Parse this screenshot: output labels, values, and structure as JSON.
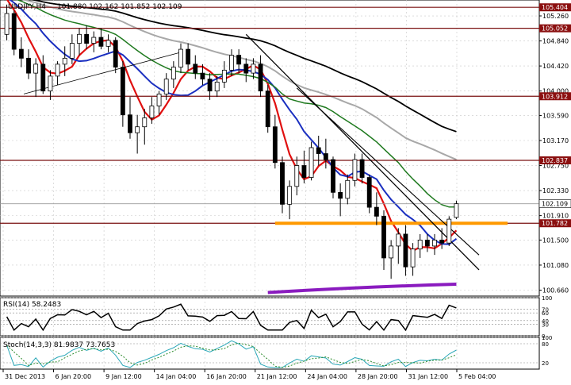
{
  "header": {
    "symbol": "USDJPY,H4",
    "ohlc": "101.880 102.162 101.852 102.109"
  },
  "chart_data": {
    "type": "candlestick",
    "symbol": "USDJPY",
    "timeframe": "H4",
    "y_range": [
      100.6,
      105.5
    ],
    "price_ticks": [
      105.26,
      104.84,
      104.42,
      104.0,
      103.59,
      103.17,
      102.75,
      102.33,
      101.91,
      101.5,
      101.08,
      100.66
    ],
    "time_labels": [
      "31 Dec 2013",
      "6 Jan 20:00",
      "9 Jan 12:00",
      "14 Jan 04:00",
      "16 Jan 20:00",
      "21 Jan 12:00",
      "24 Jan 04:00",
      "28 Jan 20:00",
      "31 Jan 12:00",
      "5 Feb 04:00"
    ],
    "horizontal_levels": [
      {
        "label": "105.404",
        "value": 105.404
      },
      {
        "label": "105.052",
        "value": 105.052
      },
      {
        "label": "103.912",
        "value": 103.912
      },
      {
        "label": "102.837",
        "value": 102.837
      },
      {
        "label": "101.782",
        "value": 101.782
      }
    ],
    "current_price": {
      "label": "102.109",
      "value": 102.109
    },
    "last_ohlc": {
      "open": 101.88,
      "high": 102.162,
      "low": 101.852,
      "close": 102.109
    },
    "candles": [
      [
        104.95,
        105.45,
        104.85,
        105.3
      ],
      [
        105.3,
        105.35,
        104.6,
        104.7
      ],
      [
        104.7,
        104.9,
        104.4,
        104.55
      ],
      [
        104.55,
        104.7,
        104.2,
        104.3
      ],
      [
        104.3,
        104.55,
        103.9,
        104.45
      ],
      [
        104.45,
        104.6,
        103.95,
        104.0
      ],
      [
        104.0,
        104.35,
        103.85,
        104.25
      ],
      [
        104.25,
        104.5,
        104.1,
        104.45
      ],
      [
        104.45,
        104.75,
        104.25,
        104.55
      ],
      [
        104.55,
        104.95,
        104.45,
        104.8
      ],
      [
        104.8,
        105.05,
        104.6,
        104.95
      ],
      [
        104.95,
        105.1,
        104.7,
        104.8
      ],
      [
        104.8,
        105.0,
        104.65,
        104.9
      ],
      [
        104.9,
        105.05,
        104.7,
        104.75
      ],
      [
        104.75,
        104.95,
        104.65,
        104.85
      ],
      [
        104.85,
        104.9,
        104.3,
        104.4
      ],
      [
        104.4,
        104.5,
        103.4,
        103.6
      ],
      [
        103.6,
        103.9,
        103.2,
        103.3
      ],
      [
        103.3,
        103.6,
        102.95,
        103.4
      ],
      [
        103.4,
        103.7,
        103.1,
        103.55
      ],
      [
        103.55,
        103.9,
        103.45,
        103.75
      ],
      [
        103.75,
        104.0,
        103.6,
        103.95
      ],
      [
        103.95,
        104.3,
        103.85,
        104.2
      ],
      [
        104.2,
        104.5,
        104.05,
        104.4
      ],
      [
        104.4,
        104.8,
        104.3,
        104.7
      ],
      [
        104.7,
        104.8,
        104.35,
        104.45
      ],
      [
        104.45,
        104.6,
        104.2,
        104.3
      ],
      [
        104.3,
        104.45,
        104.1,
        104.2
      ],
      [
        104.2,
        104.3,
        103.85,
        104.0
      ],
      [
        104.0,
        104.25,
        103.9,
        104.15
      ],
      [
        104.15,
        104.5,
        104.05,
        104.35
      ],
      [
        104.35,
        104.7,
        104.25,
        104.6
      ],
      [
        104.6,
        104.7,
        104.3,
        104.45
      ],
      [
        104.45,
        104.55,
        104.15,
        104.3
      ],
      [
        104.3,
        104.55,
        104.2,
        104.45
      ],
      [
        104.45,
        104.6,
        103.9,
        104.0
      ],
      [
        104.0,
        104.1,
        103.3,
        103.4
      ],
      [
        103.4,
        103.6,
        102.7,
        102.8
      ],
      [
        102.8,
        102.9,
        101.95,
        102.1
      ],
      [
        102.1,
        102.5,
        101.85,
        102.4
      ],
      [
        102.4,
        102.9,
        102.25,
        102.75
      ],
      [
        102.75,
        103.0,
        102.45,
        102.55
      ],
      [
        102.55,
        103.15,
        102.5,
        103.05
      ],
      [
        103.05,
        103.25,
        102.75,
        102.95
      ],
      [
        102.95,
        103.2,
        102.7,
        102.85
      ],
      [
        102.85,
        102.9,
        102.2,
        102.3
      ],
      [
        102.3,
        102.45,
        101.9,
        102.2
      ],
      [
        102.2,
        102.6,
        102.1,
        102.5
      ],
      [
        102.5,
        102.95,
        102.4,
        102.85
      ],
      [
        102.85,
        102.95,
        102.45,
        102.55
      ],
      [
        102.55,
        102.6,
        101.95,
        102.05
      ],
      [
        102.05,
        102.3,
        101.75,
        101.9
      ],
      [
        101.9,
        102.0,
        101.0,
        101.2
      ],
      [
        101.2,
        101.5,
        100.85,
        101.4
      ],
      [
        101.4,
        101.7,
        101.1,
        101.6
      ],
      [
        101.6,
        101.75,
        100.9,
        101.05
      ],
      [
        101.05,
        101.45,
        100.9,
        101.35
      ],
      [
        101.35,
        101.6,
        101.2,
        101.5
      ],
      [
        101.5,
        101.6,
        101.3,
        101.4
      ],
      [
        101.4,
        101.6,
        101.25,
        101.5
      ],
      [
        101.5,
        101.7,
        101.35,
        101.45
      ],
      [
        101.45,
        101.9,
        101.4,
        101.85
      ],
      [
        101.88,
        102.162,
        101.852,
        102.109
      ]
    ],
    "overlay_lines": [
      {
        "kind": "moving-average",
        "color": "#e01010"
      },
      {
        "kind": "moving-average",
        "color": "#1a2fc0"
      },
      {
        "kind": "moving-average",
        "color": "#1f7a1f"
      },
      {
        "kind": "moving-average",
        "color": "#a8a8a8"
      },
      {
        "kind": "moving-average",
        "color": "#000000"
      },
      {
        "kind": "support",
        "color": "#ff9900"
      },
      {
        "kind": "support",
        "color": "#8a1bbf"
      }
    ],
    "rsi": {
      "label": "RSI(14) 58.2483",
      "scale_labels": [
        "100",
        "70",
        "60",
        "40",
        "30",
        "0"
      ]
    },
    "stochastic": {
      "label": "Stoch(14,3,3) 81.9837 73.7653",
      "scale_labels": [
        "100",
        "80",
        "20"
      ]
    }
  }
}
